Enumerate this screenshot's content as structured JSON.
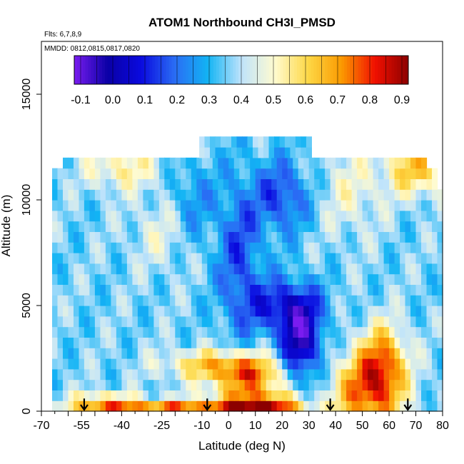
{
  "chart_data": {
    "type": "heatmap",
    "title": "ATOM1 Northbound CH3I_PMSD",
    "subtitle_flights": "Flts: 6,7,8,9",
    "subtitle_dates": "MMDD: 0812,0815,0817,0820",
    "xlabel": "Latitude (deg N)",
    "ylabel": "Altitude (m)",
    "xlim": [
      -70,
      80
    ],
    "ylim": [
      0,
      17500
    ],
    "x_ticks": [
      -70,
      -55,
      -40,
      -25,
      -10,
      0,
      10,
      20,
      30,
      40,
      50,
      60,
      70,
      80
    ],
    "y_ticks": [
      0,
      5000,
      10000,
      15000
    ],
    "colorbar": {
      "range": [
        -0.12,
        0.92
      ],
      "ticks": [
        -0.1,
        0.0,
        0.1,
        0.2,
        0.3,
        0.4,
        0.5,
        0.6,
        0.7,
        0.8,
        0.9
      ],
      "tick_labels": [
        "-0.1",
        "0.0",
        "0.1",
        "0.2",
        "0.3",
        "0.4",
        "0.5",
        "0.6",
        "0.7",
        "0.8",
        "0.9"
      ],
      "colors": [
        "#7a1cf0",
        "#0a00a6",
        "#0a0adf",
        "#2a6cf4",
        "#12b4f4",
        "#bfe3fb",
        "#fffbd0",
        "#fdd846",
        "#fb9a00",
        "#f11000",
        "#8c0000"
      ]
    },
    "arrows_latitude": [
      -54,
      -8,
      38,
      67
    ],
    "altitude_bins": [
      250,
      750,
      1250,
      1750,
      2250,
      2750,
      3250,
      3750,
      4250,
      4750,
      5250,
      5750,
      6250,
      6750,
      7250,
      7750,
      8250,
      8750,
      9250,
      9750,
      10250,
      10750,
      11250,
      11750,
      12250,
      12750
    ],
    "data_lat_extent": [
      -66,
      80
    ]
  }
}
